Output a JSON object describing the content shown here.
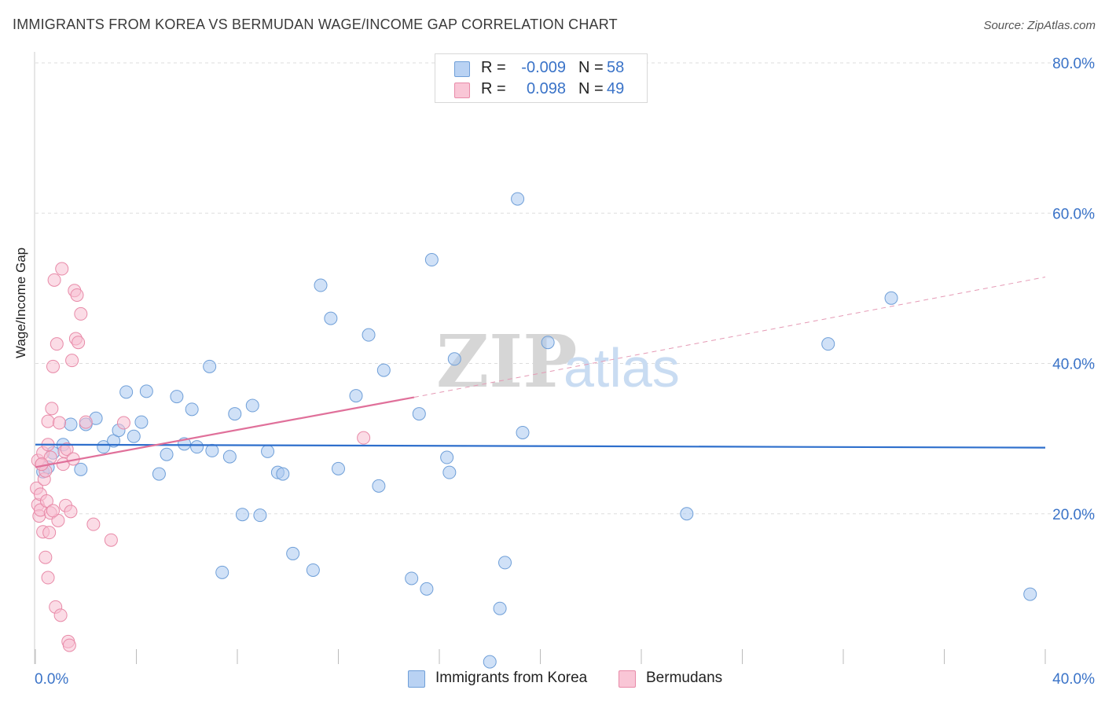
{
  "header": {
    "title": "IMMIGRANTS FROM KOREA VS BERMUDAN WAGE/INCOME GAP CORRELATION CHART",
    "source": "Source: ZipAtlas.com"
  },
  "stats": [
    {
      "swatch_color": "#b9d2f3",
      "swatch_border": "#6f9fd8",
      "r_label": "R =",
      "r_value": "-0.009",
      "n_label": "N =",
      "n_value": "58"
    },
    {
      "swatch_color": "#f9c6d6",
      "swatch_border": "#e88aa8",
      "r_label": "R =",
      "r_value": "0.098",
      "n_label": "N =",
      "n_value": "49"
    }
  ],
  "legend": [
    {
      "label": "Immigrants from Korea",
      "color": "#b9d2f3",
      "border": "#6f9fd8"
    },
    {
      "label": "Bermudans",
      "color": "#f9c6d6",
      "border": "#e88aa8"
    }
  ],
  "chart_data": {
    "type": "scatter",
    "title": "IMMIGRANTS FROM KOREA VS BERMUDAN WAGE/INCOME GAP CORRELATION CHART",
    "xlabel": "",
    "ylabel": "Wage/Income Gap",
    "xlim": [
      0,
      40
    ],
    "ylim": [
      0,
      80
    ],
    "x_tick_labels": [
      {
        "value": 0,
        "label": "0.0%"
      },
      {
        "value": 40,
        "label": "40.0%"
      }
    ],
    "y_tick_labels": [
      {
        "value": 20,
        "label": "20.0%"
      },
      {
        "value": 40,
        "label": "40.0%"
      },
      {
        "value": 60,
        "label": "60.0%"
      },
      {
        "value": 80,
        "label": "80.0%"
      }
    ],
    "watermark": {
      "zip": "ZIP",
      "atlas": "atlas"
    },
    "series": [
      {
        "name": "Immigrants from Korea",
        "color": "#a9c8f0",
        "stroke": "#6f9fd8",
        "trend": {
          "x0": 0,
          "y0": 29.2,
          "x1": 40,
          "y1": 28.8,
          "color": "#2e6fcc"
        },
        "points": [
          [
            0.3,
            25.6
          ],
          [
            0.5,
            26.2
          ],
          [
            0.7,
            28.1
          ],
          [
            1.1,
            29.2
          ],
          [
            1.4,
            31.9
          ],
          [
            1.8,
            25.9
          ],
          [
            2.0,
            31.9
          ],
          [
            2.4,
            32.7
          ],
          [
            2.7,
            28.9
          ],
          [
            3.1,
            29.7
          ],
          [
            3.3,
            31.1
          ],
          [
            3.6,
            36.2
          ],
          [
            3.9,
            30.3
          ],
          [
            4.2,
            32.2
          ],
          [
            4.4,
            36.3
          ],
          [
            4.9,
            25.3
          ],
          [
            5.2,
            27.9
          ],
          [
            5.6,
            35.6
          ],
          [
            5.9,
            29.3
          ],
          [
            6.2,
            33.9
          ],
          [
            6.4,
            28.9
          ],
          [
            6.9,
            39.6
          ],
          [
            7.0,
            28.4
          ],
          [
            7.4,
            12.2
          ],
          [
            7.7,
            27.6
          ],
          [
            7.9,
            33.3
          ],
          [
            8.2,
            19.9
          ],
          [
            8.6,
            34.4
          ],
          [
            8.9,
            19.8
          ],
          [
            9.2,
            28.3
          ],
          [
            9.6,
            25.5
          ],
          [
            9.8,
            25.3
          ],
          [
            10.2,
            14.7
          ],
          [
            11.0,
            12.5
          ],
          [
            11.3,
            50.4
          ],
          [
            11.7,
            46.0
          ],
          [
            12.0,
            26.0
          ],
          [
            12.7,
            35.7
          ],
          [
            13.2,
            43.8
          ],
          [
            13.6,
            23.7
          ],
          [
            13.8,
            39.1
          ],
          [
            14.9,
            11.4
          ],
          [
            15.2,
            33.3
          ],
          [
            15.5,
            10.0
          ],
          [
            15.7,
            53.8
          ],
          [
            16.3,
            27.5
          ],
          [
            16.4,
            25.5
          ],
          [
            16.6,
            40.6
          ],
          [
            18.0,
            0.3
          ],
          [
            18.4,
            7.4
          ],
          [
            18.6,
            13.5
          ],
          [
            19.1,
            61.9
          ],
          [
            19.3,
            30.8
          ],
          [
            20.3,
            42.8
          ],
          [
            25.8,
            20.0
          ],
          [
            31.4,
            42.6
          ],
          [
            33.9,
            48.7
          ],
          [
            39.4,
            9.3
          ]
        ]
      },
      {
        "name": "Bermudans",
        "color": "#f7bfd1",
        "stroke": "#e88aa8",
        "trend": {
          "x0": 0,
          "y0": 26.2,
          "x1": 15,
          "y1": 35.5,
          "color": "#e0709a"
        },
        "trend_dashed": {
          "x0": 15,
          "y0": 35.5,
          "x1": 40,
          "y1": 51.5,
          "color": "#e59ab5"
        },
        "points": [
          [
            0.05,
            23.4
          ],
          [
            0.1,
            27.1
          ],
          [
            0.1,
            21.2
          ],
          [
            0.15,
            19.7
          ],
          [
            0.2,
            20.5
          ],
          [
            0.2,
            22.6
          ],
          [
            0.25,
            26.6
          ],
          [
            0.3,
            28.1
          ],
          [
            0.3,
            17.6
          ],
          [
            0.35,
            24.6
          ],
          [
            0.4,
            25.7
          ],
          [
            0.4,
            14.2
          ],
          [
            0.45,
            21.7
          ],
          [
            0.5,
            29.2
          ],
          [
            0.5,
            32.3
          ],
          [
            0.5,
            11.5
          ],
          [
            0.55,
            17.5
          ],
          [
            0.6,
            20.1
          ],
          [
            0.6,
            27.5
          ],
          [
            0.65,
            34.0
          ],
          [
            0.7,
            39.6
          ],
          [
            0.75,
            51.1
          ],
          [
            0.8,
            7.6
          ],
          [
            0.85,
            42.6
          ],
          [
            0.9,
            19.1
          ],
          [
            0.95,
            32.1
          ],
          [
            1.0,
            6.5
          ],
          [
            1.05,
            52.6
          ],
          [
            1.1,
            26.6
          ],
          [
            1.15,
            28.3
          ],
          [
            1.2,
            21.1
          ],
          [
            1.25,
            28.6
          ],
          [
            1.3,
            3.0
          ],
          [
            1.35,
            2.5
          ],
          [
            1.4,
            20.3
          ],
          [
            1.45,
            40.4
          ],
          [
            1.5,
            27.3
          ],
          [
            1.55,
            49.7
          ],
          [
            1.6,
            43.3
          ],
          [
            1.65,
            49.1
          ],
          [
            1.7,
            42.8
          ],
          [
            1.8,
            46.6
          ],
          [
            2.0,
            32.2
          ],
          [
            2.3,
            18.6
          ],
          [
            3.0,
            16.5
          ],
          [
            3.5,
            32.1
          ],
          [
            13.0,
            30.1
          ],
          [
            0.25,
            26.6
          ],
          [
            0.7,
            20.4
          ]
        ]
      }
    ]
  }
}
